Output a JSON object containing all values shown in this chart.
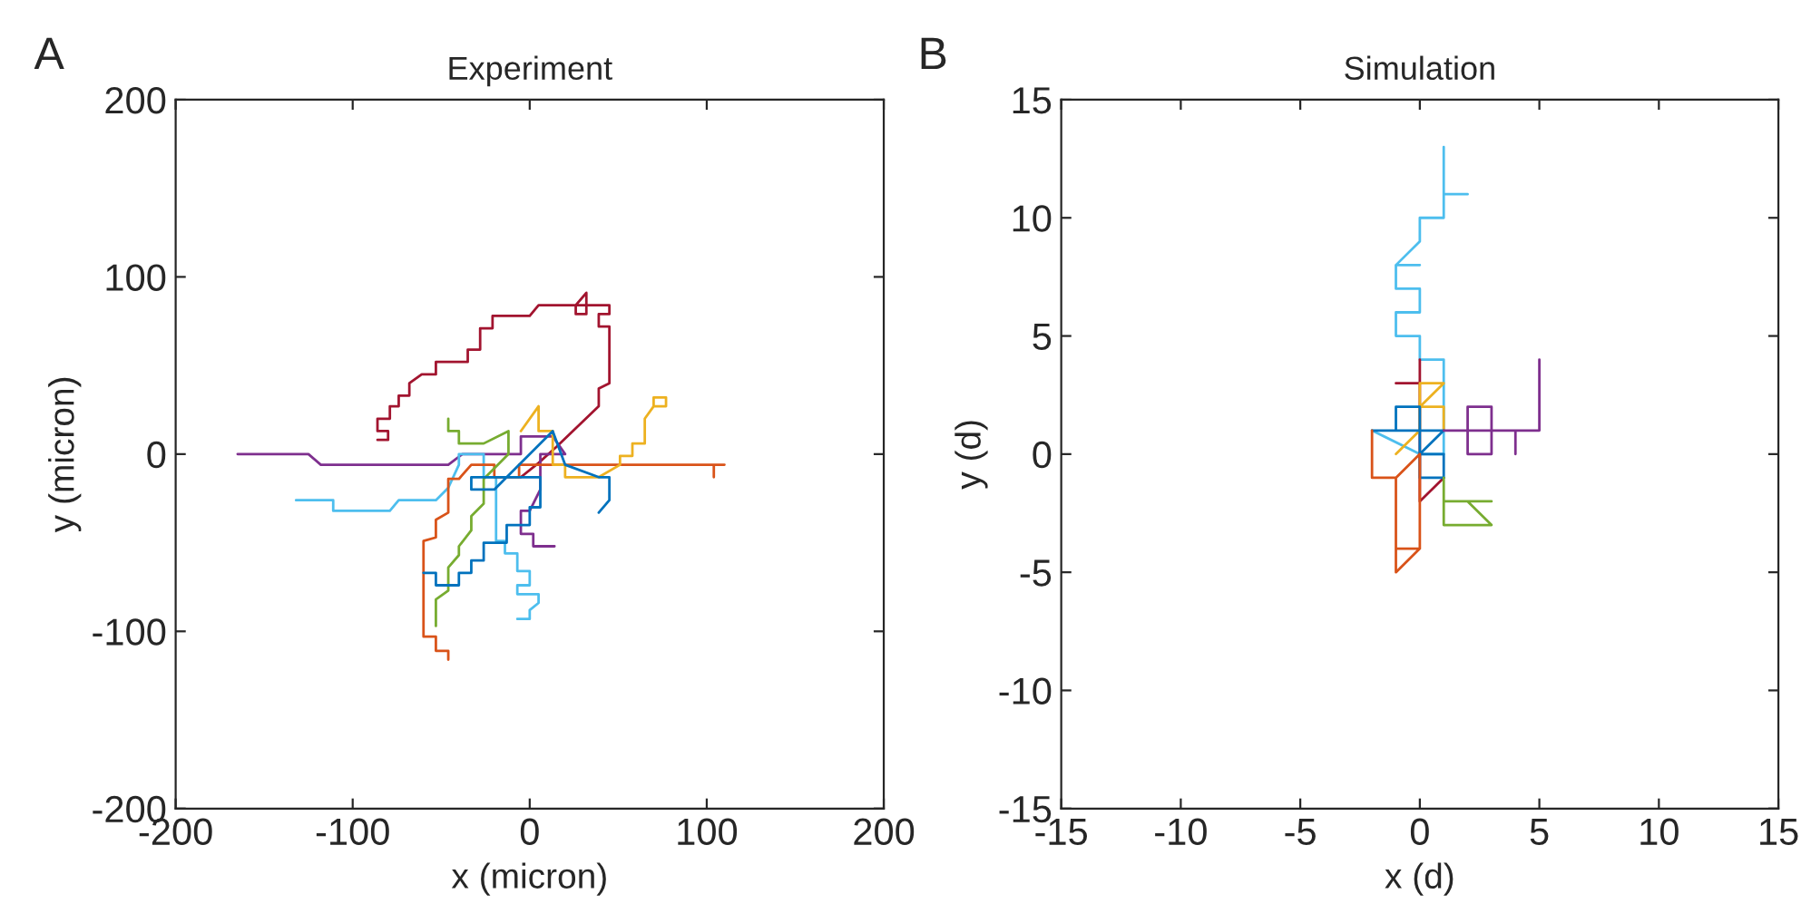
{
  "chart_data": [
    {
      "type": "line",
      "title": "Experiment",
      "xlabel": "x (micron)",
      "ylabel": "y (micron)",
      "annotations": [
        "A"
      ],
      "xlim": [
        -200,
        200
      ],
      "ylim": [
        -200,
        200
      ],
      "xticks": [
        -200,
        -100,
        0,
        100,
        200
      ],
      "yticks": [
        -200,
        -100,
        0,
        100,
        200
      ],
      "grid": false,
      "legend": false,
      "series": [
        {
          "color": "#a2142f",
          "x": [
            -86,
            -80,
            -80,
            -86,
            -86,
            -79,
            -79,
            -74,
            -74,
            -68,
            -68,
            -61,
            -53,
            -53,
            -35,
            -35,
            -28,
            -28,
            -21,
            -21,
            0,
            5,
            26,
            26,
            32,
            32,
            26,
            32,
            45,
            45,
            39,
            39,
            45,
            45,
            39,
            39,
            15,
            5,
            -5
          ],
          "values": [
            8,
            8,
            13,
            13,
            20,
            20,
            27,
            27,
            33,
            33,
            40,
            45,
            45,
            52,
            52,
            59,
            59,
            71,
            71,
            78,
            78,
            84,
            84,
            79,
            79,
            91,
            84,
            84,
            84,
            79,
            79,
            72,
            72,
            40,
            37,
            27,
            4,
            -5,
            -13
          ]
        },
        {
          "color": "#7e2f8e",
          "x": [
            -165,
            -125,
            -118,
            -46,
            -38,
            -5,
            -5,
            13,
            20,
            6,
            6,
            0,
            -5,
            -5,
            2,
            2,
            14
          ],
          "values": [
            0,
            0,
            -6,
            -6,
            0,
            0,
            10,
            10,
            0,
            0,
            -20,
            -32,
            -32,
            -45,
            -45,
            -52,
            -52
          ]
        },
        {
          "color": "#4dbeee",
          "x": [
            -132,
            -111,
            -111,
            -79,
            -74,
            -53,
            -46,
            -40,
            -40,
            -26,
            -26,
            -19,
            -19,
            -14,
            -14,
            -7,
            -7,
            0,
            0,
            -7,
            -7,
            5,
            5,
            0,
            0,
            -7
          ],
          "values": [
            -26,
            -26,
            -32,
            -32,
            -26,
            -26,
            -19,
            -6,
            0,
            0,
            -13,
            -13,
            -49,
            -49,
            -56,
            -56,
            -66,
            -66,
            -74,
            -74,
            -79,
            -79,
            -84,
            -88,
            -93,
            -93
          ]
        },
        {
          "color": "#d95319",
          "x": [
            -46,
            -46,
            -53,
            -53,
            -60,
            -60,
            -53,
            -53,
            -46,
            -46,
            -40,
            -33,
            -20,
            -20,
            -6,
            -6,
            104,
            104,
            104,
            110
          ],
          "values": [
            -116,
            -111,
            -111,
            -103,
            -103,
            -49,
            -47,
            -37,
            -33,
            -14,
            -14,
            -6,
            -6,
            -13,
            -13,
            -6,
            -6,
            -13,
            -6,
            -6
          ]
        },
        {
          "color": "#edb120",
          "x": [
            -5,
            5,
            5,
            13,
            13,
            20,
            20,
            39,
            51,
            51,
            58,
            58,
            65,
            65,
            70,
            70,
            77,
            77,
            70
          ],
          "values": [
            13,
            27,
            13,
            13,
            -6,
            -6,
            -13,
            -13,
            -6,
            -1,
            -1,
            6,
            6,
            20,
            27,
            32,
            32,
            27,
            27
          ]
        },
        {
          "color": "#77ac30",
          "x": [
            -46,
            -46,
            -40,
            -40,
            -26,
            -12,
            -12,
            -26,
            -26,
            -33,
            -33,
            -40,
            -40,
            -46,
            -46,
            -53,
            -53
          ],
          "values": [
            20,
            13,
            13,
            6,
            6,
            13,
            0,
            -14,
            -28,
            -35,
            -43,
            -52,
            -57,
            -64,
            -77,
            -82,
            -97
          ]
        },
        {
          "color": "#0072bd",
          "x": [
            -60,
            -53,
            -53,
            -40,
            -40,
            -33,
            -33,
            -26,
            -26,
            -13,
            -13,
            0,
            0,
            6,
            6,
            -33,
            -33,
            -20,
            13,
            20,
            39,
            45,
            45,
            39
          ],
          "values": [
            -67,
            -67,
            -74,
            -74,
            -67,
            -67,
            -60,
            -60,
            -50,
            -50,
            -40,
            -40,
            -30,
            -30,
            -13,
            -13,
            -20,
            -20,
            13,
            -6,
            -13,
            -13,
            -26,
            -33
          ]
        }
      ]
    },
    {
      "type": "line",
      "title": "Simulation",
      "xlabel": "x (d)",
      "ylabel": "y (d)",
      "annotations": [
        "B"
      ],
      "xlim": [
        -15,
        15
      ],
      "ylim": [
        -15,
        15
      ],
      "xticks": [
        -15,
        -10,
        -5,
        0,
        5,
        10,
        15
      ],
      "yticks": [
        -15,
        -10,
        -5,
        0,
        5,
        10,
        15
      ],
      "grid": false,
      "legend": false,
      "series": [
        {
          "color": "#4dbeee",
          "x": [
            1,
            1,
            2,
            1,
            1,
            0,
            0,
            -1,
            0,
            -1,
            -1,
            0,
            0,
            -1,
            -1,
            0,
            0,
            1,
            1,
            0,
            -2
          ],
          "values": [
            13,
            11,
            11,
            11,
            10,
            10,
            9,
            8,
            8,
            8,
            7,
            7,
            6,
            6,
            5,
            5,
            4,
            4,
            0,
            0,
            1
          ]
        },
        {
          "color": "#a2142f",
          "x": [
            -1,
            0,
            0,
            0,
            1
          ],
          "values": [
            3,
            3,
            4,
            -2,
            -1
          ]
        },
        {
          "color": "#edb120",
          "x": [
            -1,
            0,
            0,
            1,
            0,
            1,
            1
          ],
          "values": [
            0,
            1,
            3,
            3,
            2,
            2,
            1
          ]
        },
        {
          "color": "#0072bd",
          "x": [
            -1,
            -1,
            0,
            0,
            1,
            1,
            0,
            1,
            -2
          ],
          "values": [
            1,
            2,
            2,
            -1,
            -1,
            0,
            0,
            1,
            1
          ]
        },
        {
          "color": "#d95319",
          "x": [
            -2,
            -2,
            -1,
            -1,
            0,
            -1,
            0,
            0,
            -1
          ],
          "values": [
            1,
            -1,
            -1,
            -5,
            -4,
            -4,
            -4,
            0,
            -1
          ]
        },
        {
          "color": "#77ac30",
          "x": [
            1,
            1,
            3,
            2,
            3,
            1
          ],
          "values": [
            -1,
            -3,
            -3,
            -2,
            -2,
            -2
          ]
        },
        {
          "color": "#7e2f8e",
          "x": [
            1,
            2,
            2,
            3,
            3,
            2,
            2,
            4,
            4,
            4,
            5,
            5
          ],
          "values": [
            1,
            1,
            2,
            2,
            0,
            0,
            1,
            1,
            0,
            1,
            1,
            4
          ]
        }
      ]
    }
  ]
}
